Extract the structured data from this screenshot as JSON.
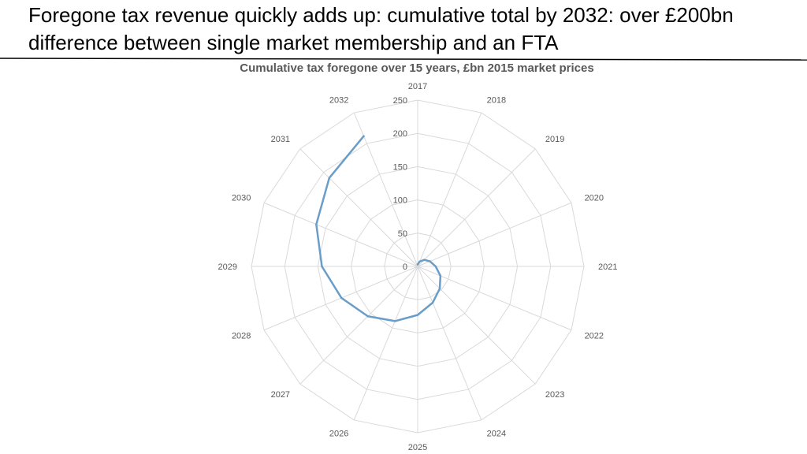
{
  "slide": {
    "title": "Foregone tax revenue quickly adds up: cumulative total by 2032: over £200bn difference between single market membership and an FTA"
  },
  "colors": {
    "series": "#6a9dc7",
    "grid": "#d9d9d9",
    "label": "#595959"
  },
  "chart_data": {
    "type": "radar",
    "title": "Cumulative tax foregone over 15 years, £bn 2015 market prices",
    "categories": [
      "2017",
      "2018",
      "2019",
      "2020",
      "2021",
      "2022",
      "2023",
      "2024",
      "2025",
      "2026",
      "2027",
      "2028",
      "2029",
      "2030",
      "2031",
      "2032"
    ],
    "radial_ticks": [
      "0",
      "50",
      "100",
      "150",
      "200",
      "250"
    ],
    "rlim": [
      0,
      250
    ],
    "grid": true,
    "legend": "none",
    "series": [
      {
        "values": [
          3,
          8,
          14,
          20,
          27,
          37,
          47,
          59,
          73,
          89,
          106,
          124,
          144,
          165,
          188,
          212
        ]
      }
    ]
  }
}
